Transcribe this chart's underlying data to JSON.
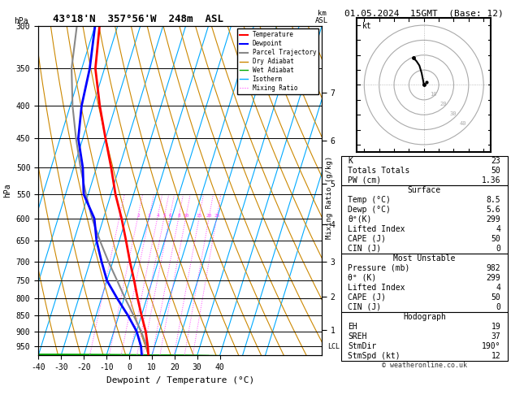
{
  "title_left": "43°18'N  357°56'W  248m  ASL",
  "title_right": "01.05.2024  15GMT  (Base: 12)",
  "xlabel": "Dewpoint / Temperature (°C)",
  "pmin": 300,
  "pmax": 982,
  "tmin": -40,
  "tmax": 40,
  "p_ticks": [
    300,
    350,
    400,
    450,
    500,
    550,
    600,
    650,
    700,
    750,
    800,
    850,
    900,
    950
  ],
  "km_ticks": [
    7,
    6,
    5,
    4,
    3,
    2,
    1
  ],
  "km_pressures": [
    382,
    454,
    530,
    613,
    701,
    795,
    896
  ],
  "temp_p": [
    982,
    950,
    900,
    850,
    800,
    750,
    700,
    650,
    600,
    550,
    500,
    450,
    400,
    350,
    300
  ],
  "temp_t": [
    8.5,
    7.0,
    4.0,
    0.0,
    -4.0,
    -8.0,
    -12.5,
    -17.0,
    -22.0,
    -28.0,
    -33.5,
    -40.0,
    -47.0,
    -54.0,
    -58.0
  ],
  "dewp_p": [
    982,
    950,
    900,
    850,
    800,
    750,
    700,
    650,
    600,
    550,
    500,
    450,
    400,
    350,
    300
  ],
  "dewp_t": [
    5.6,
    4.0,
    0.0,
    -6.0,
    -13.0,
    -20.0,
    -25.0,
    -30.0,
    -34.0,
    -42.0,
    -46.0,
    -52.0,
    -55.0,
    -56.5,
    -60.0
  ],
  "parcel_p": [
    982,
    950,
    900,
    850,
    800,
    750,
    700,
    650,
    600,
    550,
    500,
    450,
    400,
    350,
    300
  ],
  "parcel_t": [
    8.5,
    6.5,
    2.0,
    -3.5,
    -9.5,
    -15.5,
    -22.0,
    -28.5,
    -35.0,
    -41.0,
    -47.0,
    -53.0,
    -59.0,
    -64.5,
    -68.0
  ],
  "lcl_pressure": 950,
  "mix_ratios": [
    1,
    2,
    3,
    4,
    5,
    6,
    8,
    10,
    15,
    20,
    25
  ],
  "color_temp": "#ff0000",
  "color_dewp": "#0000ff",
  "color_parcel": "#888888",
  "color_dry": "#cc8800",
  "color_wet": "#00aa00",
  "color_iso": "#00aaff",
  "color_mix": "#ff44ff",
  "hodograph_u": [
    0.0,
    -0.5,
    -1.5,
    -3.0,
    -5.0,
    -7.0
  ],
  "hodograph_v": [
    0.0,
    3.0,
    8.0,
    13.0,
    16.0,
    18.0
  ],
  "wind_barb_colors_right": [
    "#ff0000",
    "#ff00ff",
    "#0000ff",
    "#0000ff",
    "#ffff00",
    "#00cc00",
    "#00cc00",
    "#00cc00",
    "#ffff00"
  ],
  "wind_barb_pressures": [
    300,
    400,
    500,
    600,
    700,
    800,
    850,
    900,
    950
  ],
  "stats": {
    "K": 23,
    "Totals_Totals": 50,
    "PW_cm": 1.36,
    "Surf_Temp": 8.5,
    "Surf_Dewp": 5.6,
    "Surf_theta_e": 299,
    "Surf_LI": 4,
    "Surf_CAPE": 50,
    "Surf_CIN": 0,
    "MU_P": 982,
    "MU_theta_e": 299,
    "MU_LI": 4,
    "MU_CAPE": 50,
    "MU_CIN": 0,
    "EH": 19,
    "SREH": 37,
    "StmDir": 190,
    "StmSpd": 12
  }
}
